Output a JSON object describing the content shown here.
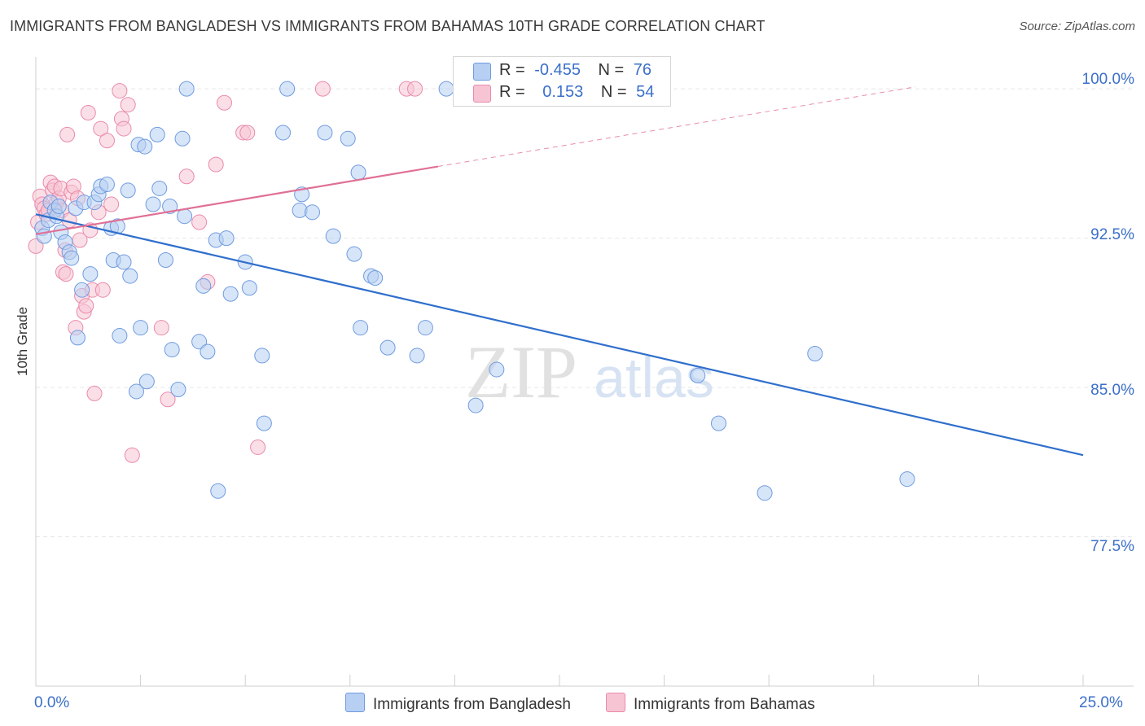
{
  "header": {
    "title": "IMMIGRANTS FROM BANGLADESH VS IMMIGRANTS FROM BAHAMAS 10TH GRADE CORRELATION CHART",
    "source": "Source: ZipAtlas.com"
  },
  "colors": {
    "blue_fill": "#b7cff3",
    "blue_stroke": "#6f9be0",
    "blue_line": "#2f6fcc",
    "pink_fill": "#f7c4d4",
    "pink_stroke": "#e98aab",
    "pink_line": "#e07096",
    "axis_label": "#3b6fc9",
    "grid": "#e6e6e6"
  },
  "legend": {
    "rows": [
      {
        "r_label": "R =",
        "r_value": "-0.455",
        "n_label": "N =",
        "n_value": "76"
      },
      {
        "r_label": "R =",
        "r_value": "0.153",
        "n_label": "N =",
        "n_value": "54"
      }
    ]
  },
  "watermark": {
    "zip": "ZIP",
    "atlas": "atlas"
  },
  "chart_data": {
    "type": "scatter",
    "title": "IMMIGRANTS FROM BANGLADESH VS IMMIGRANTS FROM BAHAMAS 10TH GRADE CORRELATION CHART",
    "xlabel": "",
    "ylabel": "10th Grade",
    "xlim": [
      0,
      25
    ],
    "ylim": [
      70.0,
      101.6
    ],
    "x_tick_labels": [
      "0.0%",
      "25.0%"
    ],
    "y_ticks": [
      77.5,
      85.0,
      92.5,
      100.0
    ],
    "y_tick_labels": [
      "77.5%",
      "85.0%",
      "92.5%",
      "100.0%"
    ],
    "grid": true,
    "legend_position": "bottom",
    "series": [
      {
        "name": "Immigrants from Bangladesh",
        "color": "#6f9be0",
        "R": -0.455,
        "N": 76,
        "trend": {
          "x": [
            0,
            25
          ],
          "y": [
            93.7,
            81.6
          ]
        },
        "points": [
          {
            "x": 0.15,
            "y": 93.0
          },
          {
            "x": 0.2,
            "y": 92.6
          },
          {
            "x": 0.3,
            "y": 93.4
          },
          {
            "x": 0.35,
            "y": 94.3
          },
          {
            "x": 0.45,
            "y": 93.9
          },
          {
            "x": 0.5,
            "y": 93.6
          },
          {
            "x": 0.55,
            "y": 94.1
          },
          {
            "x": 0.6,
            "y": 92.8
          },
          {
            "x": 0.7,
            "y": 92.3
          },
          {
            "x": 0.8,
            "y": 91.8
          },
          {
            "x": 0.85,
            "y": 91.5
          },
          {
            "x": 0.95,
            "y": 94.0
          },
          {
            "x": 1.0,
            "y": 87.5
          },
          {
            "x": 1.1,
            "y": 89.9
          },
          {
            "x": 1.15,
            "y": 94.3
          },
          {
            "x": 1.3,
            "y": 90.7
          },
          {
            "x": 1.4,
            "y": 94.3
          },
          {
            "x": 1.5,
            "y": 94.7
          },
          {
            "x": 1.55,
            "y": 95.1
          },
          {
            "x": 1.7,
            "y": 95.2
          },
          {
            "x": 1.8,
            "y": 93.0
          },
          {
            "x": 1.85,
            "y": 91.4
          },
          {
            "x": 1.95,
            "y": 93.1
          },
          {
            "x": 2.0,
            "y": 87.6
          },
          {
            "x": 2.1,
            "y": 91.3
          },
          {
            "x": 2.2,
            "y": 94.9
          },
          {
            "x": 2.25,
            "y": 90.6
          },
          {
            "x": 2.4,
            "y": 84.8
          },
          {
            "x": 2.45,
            "y": 97.2
          },
          {
            "x": 2.5,
            "y": 88.0
          },
          {
            "x": 2.6,
            "y": 97.1
          },
          {
            "x": 2.65,
            "y": 85.3
          },
          {
            "x": 2.8,
            "y": 94.2
          },
          {
            "x": 2.9,
            "y": 97.7
          },
          {
            "x": 2.95,
            "y": 95.0
          },
          {
            "x": 3.1,
            "y": 91.4
          },
          {
            "x": 3.2,
            "y": 94.1
          },
          {
            "x": 3.25,
            "y": 86.9
          },
          {
            "x": 3.4,
            "y": 84.9
          },
          {
            "x": 3.5,
            "y": 97.5
          },
          {
            "x": 3.55,
            "y": 93.6
          },
          {
            "x": 3.6,
            "y": 100.0
          },
          {
            "x": 3.9,
            "y": 87.3
          },
          {
            "x": 4.0,
            "y": 90.1
          },
          {
            "x": 4.1,
            "y": 86.8
          },
          {
            "x": 4.3,
            "y": 92.4
          },
          {
            "x": 4.35,
            "y": 79.8
          },
          {
            "x": 4.55,
            "y": 92.5
          },
          {
            "x": 4.65,
            "y": 89.7
          },
          {
            "x": 5.0,
            "y": 91.3
          },
          {
            "x": 5.1,
            "y": 90.0
          },
          {
            "x": 5.4,
            "y": 86.6
          },
          {
            "x": 5.45,
            "y": 83.2
          },
          {
            "x": 5.9,
            "y": 97.8
          },
          {
            "x": 6.0,
            "y": 100.0
          },
          {
            "x": 6.3,
            "y": 93.9
          },
          {
            "x": 6.35,
            "y": 94.7
          },
          {
            "x": 6.6,
            "y": 93.8
          },
          {
            "x": 6.9,
            "y": 97.8
          },
          {
            "x": 7.1,
            "y": 92.6
          },
          {
            "x": 7.45,
            "y": 97.5
          },
          {
            "x": 7.6,
            "y": 91.7
          },
          {
            "x": 7.7,
            "y": 95.8
          },
          {
            "x": 7.75,
            "y": 88.0
          },
          {
            "x": 8.0,
            "y": 90.6
          },
          {
            "x": 8.1,
            "y": 90.5
          },
          {
            "x": 8.4,
            "y": 87.0
          },
          {
            "x": 9.1,
            "y": 86.6
          },
          {
            "x": 9.3,
            "y": 88.0
          },
          {
            "x": 9.8,
            "y": 100.0
          },
          {
            "x": 10.5,
            "y": 84.1
          },
          {
            "x": 11.0,
            "y": 85.9
          },
          {
            "x": 15.8,
            "y": 85.6
          },
          {
            "x": 16.3,
            "y": 83.2
          },
          {
            "x": 17.4,
            "y": 79.7
          },
          {
            "x": 18.6,
            "y": 86.7
          },
          {
            "x": 20.8,
            "y": 80.4
          }
        ]
      },
      {
        "name": "Immigrants from Bahamas",
        "color": "#e98aab",
        "R": 0.153,
        "N": 54,
        "trend": {
          "x": [
            0,
            9.6
          ],
          "y": [
            92.7,
            96.1
          ]
        },
        "trend_dashed": {
          "x": [
            9.6,
            21.0
          ],
          "y": [
            96.1,
            100.1
          ]
        },
        "points": [
          {
            "x": 0.0,
            "y": 92.1
          },
          {
            "x": 0.05,
            "y": 93.3
          },
          {
            "x": 0.1,
            "y": 94.6
          },
          {
            "x": 0.15,
            "y": 94.2
          },
          {
            "x": 0.2,
            "y": 94.0
          },
          {
            "x": 0.25,
            "y": 93.7
          },
          {
            "x": 0.3,
            "y": 93.9
          },
          {
            "x": 0.35,
            "y": 95.3
          },
          {
            "x": 0.4,
            "y": 94.9
          },
          {
            "x": 0.45,
            "y": 95.1
          },
          {
            "x": 0.5,
            "y": 94.3
          },
          {
            "x": 0.55,
            "y": 94.5
          },
          {
            "x": 0.6,
            "y": 95.0
          },
          {
            "x": 0.62,
            "y": 93.9
          },
          {
            "x": 0.65,
            "y": 90.8
          },
          {
            "x": 0.7,
            "y": 91.9
          },
          {
            "x": 0.72,
            "y": 90.7
          },
          {
            "x": 0.75,
            "y": 97.7
          },
          {
            "x": 0.8,
            "y": 93.4
          },
          {
            "x": 0.85,
            "y": 94.8
          },
          {
            "x": 0.9,
            "y": 95.1
          },
          {
            "x": 0.95,
            "y": 88.0
          },
          {
            "x": 1.0,
            "y": 94.5
          },
          {
            "x": 1.05,
            "y": 92.4
          },
          {
            "x": 1.1,
            "y": 89.6
          },
          {
            "x": 1.15,
            "y": 88.8
          },
          {
            "x": 1.2,
            "y": 89.1
          },
          {
            "x": 1.25,
            "y": 98.8
          },
          {
            "x": 1.3,
            "y": 92.9
          },
          {
            "x": 1.35,
            "y": 89.9
          },
          {
            "x": 1.4,
            "y": 84.7
          },
          {
            "x": 1.5,
            "y": 93.8
          },
          {
            "x": 1.55,
            "y": 98.0
          },
          {
            "x": 1.6,
            "y": 89.9
          },
          {
            "x": 1.7,
            "y": 97.4
          },
          {
            "x": 1.8,
            "y": 94.2
          },
          {
            "x": 2.0,
            "y": 99.9
          },
          {
            "x": 2.05,
            "y": 98.5
          },
          {
            "x": 2.1,
            "y": 98.0
          },
          {
            "x": 2.2,
            "y": 99.2
          },
          {
            "x": 2.3,
            "y": 81.6
          },
          {
            "x": 3.0,
            "y": 88.0
          },
          {
            "x": 3.15,
            "y": 84.4
          },
          {
            "x": 3.6,
            "y": 95.6
          },
          {
            "x": 3.9,
            "y": 93.3
          },
          {
            "x": 4.1,
            "y": 90.3
          },
          {
            "x": 4.3,
            "y": 96.2
          },
          {
            "x": 4.5,
            "y": 99.3
          },
          {
            "x": 4.95,
            "y": 97.8
          },
          {
            "x": 5.05,
            "y": 97.8
          },
          {
            "x": 5.3,
            "y": 82.0
          },
          {
            "x": 6.85,
            "y": 100.0
          },
          {
            "x": 8.85,
            "y": 100.0
          },
          {
            "x": 9.05,
            "y": 100.0
          }
        ]
      }
    ]
  }
}
